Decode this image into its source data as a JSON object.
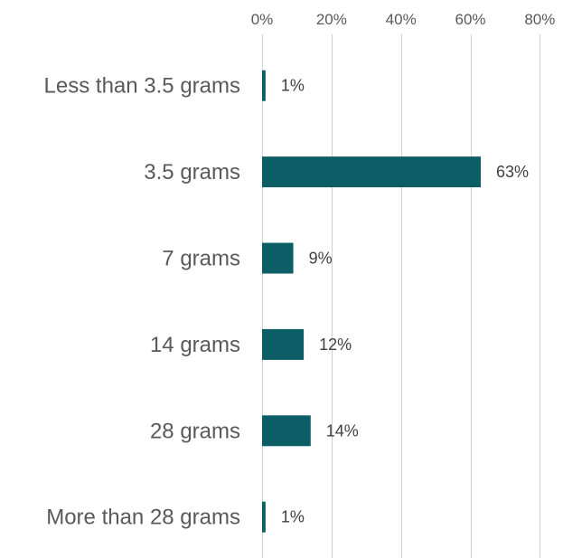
{
  "chart_data": {
    "type": "bar",
    "orientation": "horizontal",
    "title": "",
    "xlabel": "",
    "ylabel": "",
    "categories": [
      "Less than 3.5 grams",
      "3.5 grams",
      "7 grams",
      "14 grams",
      "28 grams",
      "More than 28 grams"
    ],
    "values": [
      1,
      63,
      9,
      12,
      14,
      1
    ],
    "data_labels": [
      "1%",
      "63%",
      "9%",
      "12%",
      "14%",
      "1%"
    ],
    "xlim": [
      0,
      80
    ],
    "x_ticks": [
      "0%",
      "20%",
      "40%",
      "60%",
      "80%"
    ],
    "x_tick_values": [
      0,
      20,
      40,
      60,
      80
    ],
    "axis_position": "top",
    "grid": true,
    "bar_color": "#0b5d66",
    "grid_color": "#d0d0d0"
  }
}
